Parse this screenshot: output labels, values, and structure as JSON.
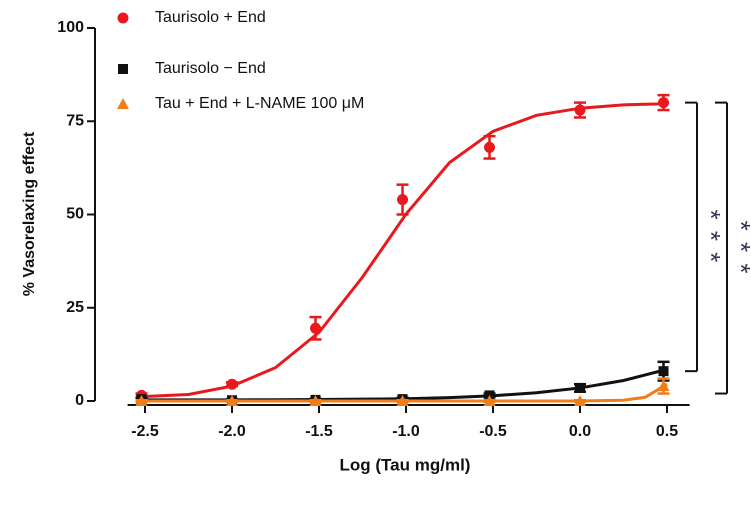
{
  "chart_data": {
    "type": "scatter",
    "y_label": "% Vasorelaxing effect",
    "x_label": "Log (Tau mg/ml)",
    "xlim": [
      -2.6,
      0.63
    ],
    "ylim": [
      0,
      100
    ],
    "xticks": [
      -2.5,
      {
        "value": -2,
        "label": "-2.0"
      },
      -1.5,
      {
        "value": -1,
        "label": "-1.0"
      },
      -0.5,
      {
        "value": 0,
        "label": "0.0"
      },
      0.5
    ],
    "yticks": [
      0,
      25,
      50,
      75,
      100
    ],
    "series": [
      {
        "name": "Taurisolo + End",
        "color": "#e8191c",
        "marker": "circle",
        "x": [
          -2.52,
          -2,
          -1.52,
          -1.02,
          -0.52,
          0,
          0.48
        ],
        "values": [
          1.5,
          4.5,
          19.5,
          54,
          68,
          78,
          80
        ],
        "errors": [
          0.5,
          0.5,
          3,
          4,
          3,
          2,
          2
        ],
        "curve_x": [
          -2.5,
          -2.25,
          -2,
          -1.75,
          -1.5,
          -1.25,
          -1,
          -0.75,
          -0.5,
          -0.25,
          0,
          0.25,
          0.5
        ],
        "curve_values": [
          1.2,
          1.75,
          4,
          8.95,
          18.4,
          33.2,
          50.1,
          63.9,
          72.3,
          76.6,
          78.5,
          79.4,
          79.7
        ]
      },
      {
        "name": "Taurisolo − End",
        "color": "#111111",
        "marker": "square",
        "x": [
          -2.52,
          -2,
          -1.52,
          -1.02,
          -0.52,
          0,
          0.48
        ],
        "values": [
          0.5,
          0.2,
          0.3,
          0.5,
          1.5,
          3.5,
          8
        ],
        "errors": [
          0.3,
          0.3,
          0.3,
          0.4,
          0.5,
          1,
          2.5
        ],
        "curve_x": [
          -2.5,
          -2.25,
          -2,
          -1.75,
          -1.5,
          -1.25,
          -1,
          -0.75,
          -0.5,
          -0.25,
          0,
          0.25,
          0.5
        ],
        "curve_values": [
          0.3,
          0.3,
          0.3,
          0.35,
          0.4,
          0.5,
          0.6,
          0.9,
          1.4,
          2.2,
          3.5,
          5.5,
          8.5
        ]
      },
      {
        "name": "Tau + End + L-NAME 100 μM",
        "color": "#f07d1a",
        "marker": "triangle",
        "x": [
          -2.52,
          -2,
          -1.52,
          -1.02,
          -0.52,
          0,
          0.48
        ],
        "values": [
          0,
          0,
          0,
          0,
          0,
          0,
          4
        ],
        "errors": [
          0.2,
          0.2,
          0.2,
          0.2,
          0.2,
          0.2,
          2
        ],
        "curve_x": [
          -2.5,
          0,
          0.25,
          0.375,
          0.5
        ],
        "curve_values": [
          0,
          0,
          0.2,
          1,
          4.5
        ]
      }
    ],
    "brackets": [
      {
        "label": "* * *",
        "from": 80,
        "to": 8
      },
      {
        "label": "* * *",
        "from": 80,
        "to": 2
      }
    ]
  }
}
